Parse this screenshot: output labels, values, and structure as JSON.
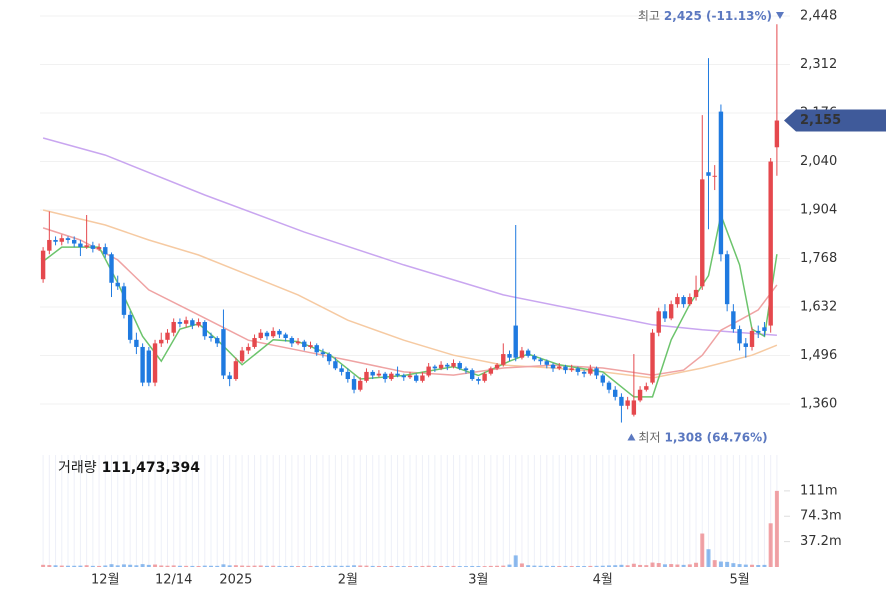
{
  "chart_data": {
    "type": "candlestick",
    "categories": [
      null,
      null,
      null,
      null,
      null,
      null,
      null,
      null,
      null,
      null,
      "12월",
      null,
      null,
      null,
      null,
      null,
      null,
      null,
      null,
      null,
      null,
      "12/14",
      null,
      null,
      null,
      null,
      null,
      null,
      null,
      null,
      null,
      "2025",
      null,
      null,
      null,
      null,
      null,
      null,
      null,
      null,
      null,
      null,
      null,
      null,
      null,
      null,
      null,
      null,
      null,
      "2월",
      null,
      null,
      null,
      null,
      null,
      null,
      null,
      null,
      null,
      null,
      null,
      null,
      null,
      null,
      null,
      null,
      null,
      null,
      null,
      null,
      "3월",
      null,
      null,
      null,
      null,
      null,
      null,
      null,
      null,
      null,
      null,
      null,
      null,
      null,
      null,
      null,
      null,
      null,
      null,
      null,
      "4월",
      null,
      null,
      null,
      null,
      null,
      null,
      null,
      null,
      null,
      null,
      null,
      null,
      null,
      null,
      null,
      null,
      null,
      null,
      null,
      null,
      null,
      "5월",
      null,
      null,
      null,
      null,
      null,
      null
    ],
    "ohlc": [
      [
        1710,
        1800,
        1700,
        1790
      ],
      [
        1790,
        1900,
        1780,
        1820
      ],
      [
        1820,
        1830,
        1805,
        1815
      ],
      [
        1815,
        1835,
        1805,
        1825
      ],
      [
        1825,
        1830,
        1810,
        1820
      ],
      [
        1820,
        1830,
        1800,
        1810
      ],
      [
        1810,
        1820,
        1775,
        1800
      ],
      [
        1800,
        1890,
        1795,
        1805
      ],
      [
        1805,
        1815,
        1785,
        1795
      ],
      [
        1795,
        1810,
        1790,
        1800
      ],
      [
        1800,
        1810,
        1770,
        1780
      ],
      [
        1780,
        1785,
        1660,
        1700
      ],
      [
        1700,
        1720,
        1680,
        1690
      ],
      [
        1690,
        1700,
        1600,
        1610
      ],
      [
        1610,
        1620,
        1530,
        1540
      ],
      [
        1540,
        1560,
        1500,
        1520
      ],
      [
        1520,
        1530,
        1410,
        1420
      ],
      [
        1510,
        1520,
        1410,
        1420
      ],
      [
        1420,
        1540,
        1410,
        1530
      ],
      [
        1530,
        1560,
        1520,
        1540
      ],
      [
        1540,
        1570,
        1530,
        1560
      ],
      [
        1560,
        1600,
        1550,
        1590
      ],
      [
        1590,
        1600,
        1575,
        1585
      ],
      [
        1585,
        1605,
        1575,
        1595
      ],
      [
        1595,
        1600,
        1570,
        1580
      ],
      [
        1580,
        1600,
        1575,
        1590
      ],
      [
        1590,
        1595,
        1540,
        1550
      ],
      [
        1550,
        1560,
        1535,
        1545
      ],
      [
        1545,
        1550,
        1520,
        1530
      ],
      [
        1570,
        1625,
        1430,
        1440
      ],
      [
        1440,
        1450,
        1410,
        1430
      ],
      [
        1430,
        1490,
        1425,
        1480
      ],
      [
        1480,
        1520,
        1475,
        1510
      ],
      [
        1510,
        1530,
        1500,
        1520
      ],
      [
        1520,
        1555,
        1515,
        1545
      ],
      [
        1545,
        1570,
        1540,
        1560
      ],
      [
        1560,
        1565,
        1540,
        1550
      ],
      [
        1550,
        1575,
        1545,
        1565
      ],
      [
        1565,
        1570,
        1545,
        1555
      ],
      [
        1555,
        1560,
        1535,
        1545
      ],
      [
        1545,
        1550,
        1520,
        1530
      ],
      [
        1530,
        1545,
        1525,
        1535
      ],
      [
        1535,
        1540,
        1510,
        1520
      ],
      [
        1520,
        1535,
        1515,
        1525
      ],
      [
        1525,
        1530,
        1495,
        1505
      ],
      [
        1505,
        1515,
        1490,
        1500
      ],
      [
        1500,
        1505,
        1470,
        1480
      ],
      [
        1480,
        1490,
        1455,
        1460
      ],
      [
        1460,
        1470,
        1440,
        1450
      ],
      [
        1450,
        1460,
        1420,
        1430
      ],
      [
        1430,
        1440,
        1390,
        1400
      ],
      [
        1400,
        1435,
        1395,
        1425
      ],
      [
        1425,
        1460,
        1420,
        1450
      ],
      [
        1450,
        1455,
        1430,
        1440
      ],
      [
        1440,
        1455,
        1435,
        1445
      ],
      [
        1445,
        1450,
        1420,
        1430
      ],
      [
        1430,
        1450,
        1425,
        1445
      ],
      [
        1445,
        1465,
        1435,
        1440
      ],
      [
        1440,
        1445,
        1425,
        1435
      ],
      [
        1435,
        1450,
        1430,
        1440
      ],
      [
        1440,
        1445,
        1420,
        1425
      ],
      [
        1425,
        1450,
        1420,
        1440
      ],
      [
        1440,
        1475,
        1435,
        1465
      ],
      [
        1465,
        1470,
        1450,
        1460
      ],
      [
        1460,
        1480,
        1455,
        1470
      ],
      [
        1470,
        1475,
        1455,
        1465
      ],
      [
        1465,
        1485,
        1460,
        1475
      ],
      [
        1475,
        1480,
        1455,
        1460
      ],
      [
        1460,
        1465,
        1445,
        1455
      ],
      [
        1455,
        1460,
        1425,
        1430
      ],
      [
        1430,
        1435,
        1415,
        1425
      ],
      [
        1425,
        1450,
        1420,
        1445
      ],
      [
        1445,
        1465,
        1440,
        1460
      ],
      [
        1460,
        1475,
        1455,
        1470
      ],
      [
        1470,
        1530,
        1465,
        1500
      ],
      [
        1500,
        1510,
        1480,
        1490
      ],
      [
        1580,
        1862,
        1480,
        1490
      ],
      [
        1490,
        1520,
        1485,
        1510
      ],
      [
        1510,
        1515,
        1490,
        1495
      ],
      [
        1495,
        1500,
        1480,
        1485
      ],
      [
        1485,
        1490,
        1470,
        1480
      ],
      [
        1480,
        1485,
        1460,
        1470
      ],
      [
        1470,
        1475,
        1450,
        1460
      ],
      [
        1460,
        1475,
        1455,
        1465
      ],
      [
        1465,
        1470,
        1445,
        1455
      ],
      [
        1455,
        1470,
        1450,
        1460
      ],
      [
        1460,
        1465,
        1440,
        1450
      ],
      [
        1450,
        1455,
        1435,
        1445
      ],
      [
        1445,
        1470,
        1440,
        1460
      ],
      [
        1460,
        1465,
        1430,
        1440
      ],
      [
        1440,
        1445,
        1410,
        1420
      ],
      [
        1420,
        1425,
        1390,
        1400
      ],
      [
        1400,
        1410,
        1370,
        1380
      ],
      [
        1380,
        1390,
        1308,
        1355
      ],
      [
        1355,
        1380,
        1345,
        1370
      ],
      [
        1330,
        1500,
        1325,
        1370
      ],
      [
        1370,
        1410,
        1365,
        1400
      ],
      [
        1400,
        1420,
        1395,
        1410
      ],
      [
        1420,
        1570,
        1415,
        1560
      ],
      [
        1560,
        1630,
        1550,
        1620
      ],
      [
        1620,
        1640,
        1590,
        1600
      ],
      [
        1600,
        1650,
        1595,
        1640
      ],
      [
        1640,
        1670,
        1630,
        1660
      ],
      [
        1660,
        1665,
        1630,
        1640
      ],
      [
        1640,
        1670,
        1635,
        1660
      ],
      [
        1660,
        1720,
        1650,
        1680
      ],
      [
        1690,
        2170,
        1680,
        1990
      ],
      [
        2010,
        2330,
        1850,
        2000
      ],
      [
        2000,
        2030,
        1960,
        2000
      ],
      [
        2180,
        2200,
        1760,
        1780
      ],
      [
        1780,
        1790,
        1620,
        1640
      ],
      [
        1620,
        1640,
        1560,
        1570
      ],
      [
        1570,
        1580,
        1510,
        1530
      ],
      [
        1530,
        1545,
        1490,
        1520
      ],
      [
        1520,
        1575,
        1510,
        1565
      ],
      [
        1565,
        1580,
        1545,
        1560
      ],
      [
        1575,
        1590,
        1550,
        1565
      ],
      [
        1580,
        2050,
        1560,
        2040
      ],
      [
        2080,
        2425,
        2000,
        2155
      ]
    ],
    "volume": [
      3200000,
      2800000,
      2500000,
      2100000,
      1900000,
      1800000,
      2000000,
      2600000,
      1700000,
      1600000,
      2200000,
      4100000,
      2400000,
      3800000,
      3300000,
      2500000,
      4200000,
      3100000,
      3600000,
      2200000,
      1900000,
      2300000,
      1800000,
      1700000,
      1600000,
      1500000,
      2000000,
      1800000,
      1700000,
      3900000,
      2400000,
      2600000,
      2100000,
      1800000,
      2000000,
      2200000,
      1700000,
      1900000,
      1600000,
      1500000,
      1600000,
      1400000,
      1500000,
      1400000,
      1600000,
      1500000,
      1800000,
      2000000,
      1700000,
      1900000,
      2500000,
      2200000,
      2000000,
      1600000,
      1500000,
      1400000,
      1500000,
      1400000,
      1300000,
      1400000,
      1300000,
      1500000,
      1900000,
      1400000,
      1500000,
      1300000,
      1600000,
      1400000,
      1300000,
      1500000,
      1400000,
      1300000,
      1600000,
      1800000,
      2000000,
      3500000,
      17000000,
      5200000,
      2600000,
      2000000,
      1800000,
      1700000,
      1600000,
      1500000,
      1600000,
      1400000,
      1500000,
      1400000,
      1600000,
      1700000,
      1900000,
      2300000,
      2600000,
      3200000,
      2500000,
      4800000,
      3000000,
      2700000,
      6500000,
      5800000,
      3900000,
      4300000,
      3600000,
      3100000,
      3800000,
      6200000,
      49000000,
      26000000,
      10000000,
      8000000,
      7500000,
      5600000,
      4200000,
      3500000,
      3300000,
      2900000,
      3100000,
      64000000,
      111473394
    ],
    "up_color": "#e5484d",
    "down_color": "#1f7ae0",
    "lines": [
      {
        "color": "#c9a6f0",
        "x": [
          0,
          10,
          26,
          42,
          58,
          74,
          90,
          98,
          106,
          118
        ],
        "values": [
          2106,
          2058,
          1946,
          1842,
          1750,
          1666,
          1610,
          1582,
          1568,
          1553
        ]
      },
      {
        "color": "#f6caa2",
        "x": [
          0,
          10,
          17,
          25,
          33,
          41,
          49,
          58,
          66,
          74,
          82,
          90,
          98,
          106,
          114,
          118
        ],
        "values": [
          1904,
          1862,
          1820,
          1778,
          1722,
          1666,
          1595,
          1539,
          1497,
          1469,
          1461,
          1450,
          1433,
          1461,
          1497,
          1525
        ]
      },
      {
        "color": "#efa3a3",
        "x": [
          0,
          6,
          12,
          17,
          25,
          33,
          41,
          49,
          58,
          66,
          74,
          82,
          90,
          98,
          103,
          106,
          109,
          112,
          115,
          118
        ],
        "values": [
          1854,
          1820,
          1764,
          1680,
          1610,
          1539,
          1511,
          1483,
          1450,
          1441,
          1461,
          1469,
          1461,
          1441,
          1455,
          1497,
          1567,
          1595,
          1624,
          1694
        ]
      },
      {
        "color": "#6cc46c",
        "x": [
          0,
          3,
          9,
          12,
          16,
          19,
          22,
          25,
          28,
          32,
          37,
          41,
          46,
          51,
          58,
          66,
          70,
          75,
          78,
          83,
          90,
          95,
          98,
          101,
          104,
          107,
          109,
          112,
          114,
          116,
          118
        ],
        "values": [
          1760,
          1800,
          1800,
          1700,
          1550,
          1480,
          1570,
          1585,
          1540,
          1470,
          1540,
          1535,
          1500,
          1430,
          1440,
          1465,
          1440,
          1480,
          1500,
          1470,
          1450,
          1380,
          1380,
          1540,
          1640,
          1720,
          1890,
          1750,
          1570,
          1550,
          1780
        ]
      }
    ],
    "ylim": [
      1231,
      2493
    ],
    "yticks": [
      {
        "value": 2448,
        "label": "2,448"
      },
      {
        "value": 2312,
        "label": "2,312"
      },
      {
        "value": 2176,
        "label": "2,176"
      },
      {
        "value": 2040,
        "label": "2,040"
      },
      {
        "value": 1904,
        "label": "1,904"
      },
      {
        "value": 1768,
        "label": "1,768"
      },
      {
        "value": 1632,
        "label": "1,632"
      },
      {
        "value": 1496,
        "label": "1,496"
      },
      {
        "value": 1360,
        "label": "1,360"
      }
    ],
    "vlim": [
      0,
      164000000
    ],
    "vticks": [
      {
        "value": 111473394,
        "label": "111m"
      },
      {
        "value": 74315596,
        "label": "74.3m"
      },
      {
        "value": 37157798,
        "label": "37.2m"
      }
    ],
    "grid": true,
    "high_annotation": {
      "title": "최고",
      "text": "2,425 (-11.13%)"
    },
    "low_annotation": {
      "title": "최저",
      "text": "1,308 (64.76%)"
    },
    "last_price_label": "2,155",
    "volume_title": "거래량",
    "volume_value_label": "111,473,394"
  }
}
